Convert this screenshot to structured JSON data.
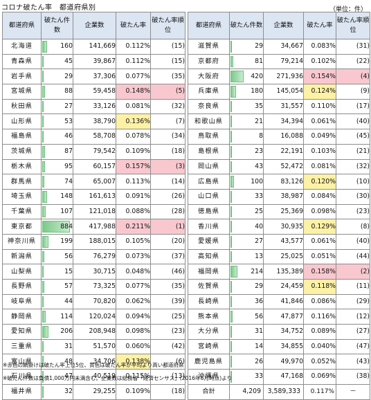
{
  "title": "コロナ破たん率　都道府県別",
  "unit": "（単位：件）",
  "headers": {
    "pref": "都道府県",
    "count": "破たん件数",
    "companies": "企業数",
    "rate": "破たん率",
    "rank": "破たん率順位"
  },
  "colors": {
    "highlight": "#fdf1a6",
    "top5": "#f9c8cf",
    "header": "#dce6f2",
    "bar": "#7cc98a"
  },
  "max_count": 884,
  "left": [
    {
      "pref": "北海道",
      "count": "160",
      "companies": "141,669",
      "rate": "0.112%",
      "rank": "(15)",
      "hl": ""
    },
    {
      "pref": "青森県",
      "count": "45",
      "companies": "39,867",
      "rate": "0.112%",
      "rank": "(15)",
      "hl": ""
    },
    {
      "pref": "岩手県",
      "count": "29",
      "companies": "37,306",
      "rate": "0.077%",
      "rank": "(35)",
      "hl": ""
    },
    {
      "pref": "宮城県",
      "count": "88",
      "companies": "59,458",
      "rate": "0.148%",
      "rank": "(5)",
      "hl": "top"
    },
    {
      "pref": "秋田県",
      "count": "27",
      "companies": "33,126",
      "rate": "0.081%",
      "rank": "(32)",
      "hl": ""
    },
    {
      "pref": "山形県",
      "count": "53",
      "companies": "38,790",
      "rate": "0.136%",
      "rank": "(7)",
      "hl": "hi"
    },
    {
      "pref": "福島県",
      "count": "46",
      "companies": "58,708",
      "rate": "0.078%",
      "rank": "(34)",
      "hl": ""
    },
    {
      "pref": "茨城県",
      "count": "87",
      "companies": "79,542",
      "rate": "0.109%",
      "rank": "(18)",
      "hl": ""
    },
    {
      "pref": "栃木県",
      "count": "95",
      "companies": "60,157",
      "rate": "0.157%",
      "rank": "(3)",
      "hl": "top"
    },
    {
      "pref": "群馬県",
      "count": "74",
      "companies": "65,007",
      "rate": "0.113%",
      "rank": "(14)",
      "hl": ""
    },
    {
      "pref": "埼玉県",
      "count": "148",
      "companies": "161,613",
      "rate": "0.091%",
      "rank": "(26)",
      "hl": ""
    },
    {
      "pref": "千葉県",
      "count": "107",
      "companies": "121,018",
      "rate": "0.088%",
      "rank": "(28)",
      "hl": ""
    },
    {
      "pref": "東京都",
      "count": "884",
      "companies": "417,988",
      "rate": "0.211%",
      "rank": "(1)",
      "hl": "top"
    },
    {
      "pref": "神奈川県",
      "count": "199",
      "companies": "188,015",
      "rate": "0.105%",
      "rank": "(20)",
      "hl": ""
    },
    {
      "pref": "新潟県",
      "count": "56",
      "companies": "76,279",
      "rate": "0.073%",
      "rank": "(37)",
      "hl": ""
    },
    {
      "pref": "山梨県",
      "count": "15",
      "companies": "30,715",
      "rate": "0.048%",
      "rank": "(46)",
      "hl": ""
    },
    {
      "pref": "長野県",
      "count": "57",
      "companies": "73,325",
      "rate": "0.077%",
      "rank": "(35)",
      "hl": ""
    },
    {
      "pref": "岐阜県",
      "count": "44",
      "companies": "70,820",
      "rate": "0.062%",
      "rank": "(39)",
      "hl": ""
    },
    {
      "pref": "静岡県",
      "count": "114",
      "companies": "120,024",
      "rate": "0.094%",
      "rank": "(25)",
      "hl": ""
    },
    {
      "pref": "愛知県",
      "count": "206",
      "companies": "208,948",
      "rate": "0.098%",
      "rank": "(23)",
      "hl": ""
    },
    {
      "pref": "三重県",
      "count": "31",
      "companies": "51,570",
      "rate": "0.060%",
      "rank": "(42)",
      "hl": ""
    },
    {
      "pref": "富山県",
      "count": "48",
      "companies": "34,706",
      "rate": "0.138%",
      "rank": "(6)",
      "hl": "hi"
    },
    {
      "pref": "石川県",
      "count": "47",
      "companies": "40,519",
      "rate": "0.115%",
      "rank": "(13)",
      "hl": ""
    },
    {
      "pref": "福井県",
      "count": "32",
      "companies": "29,255",
      "rate": "0.109%",
      "rank": "(18)",
      "hl": ""
    }
  ],
  "right": [
    {
      "pref": "滋賀県",
      "count": "29",
      "companies": "34,667",
      "rate": "0.083%",
      "rank": "(31)",
      "hl": ""
    },
    {
      "pref": "京都府",
      "count": "81",
      "companies": "79,214",
      "rate": "0.102%",
      "rank": "(22)",
      "hl": ""
    },
    {
      "pref": "大阪府",
      "count": "420",
      "companies": "271,936",
      "rate": "0.154%",
      "rank": "(4)",
      "hl": "top"
    },
    {
      "pref": "兵庫県",
      "count": "180",
      "companies": "145,054",
      "rate": "0.124%",
      "rank": "(9)",
      "hl": "hi"
    },
    {
      "pref": "奈良県",
      "count": "35",
      "companies": "31,557",
      "rate": "0.110%",
      "rank": "(17)",
      "hl": ""
    },
    {
      "pref": "和歌山県",
      "count": "21",
      "companies": "34,394",
      "rate": "0.061%",
      "rank": "(40)",
      "hl": ""
    },
    {
      "pref": "鳥取県",
      "count": "8",
      "companies": "16,088",
      "rate": "0.049%",
      "rank": "(45)",
      "hl": ""
    },
    {
      "pref": "島根県",
      "count": "23",
      "companies": "22,191",
      "rate": "0.103%",
      "rank": "(21)",
      "hl": ""
    },
    {
      "pref": "岡山県",
      "count": "43",
      "companies": "52,472",
      "rate": "0.081%",
      "rank": "(32)",
      "hl": ""
    },
    {
      "pref": "広島県",
      "count": "100",
      "companies": "83,126",
      "rate": "0.120%",
      "rank": "(10)",
      "hl": "hi"
    },
    {
      "pref": "山口県",
      "count": "33",
      "companies": "38,987",
      "rate": "0.084%",
      "rank": "(30)",
      "hl": ""
    },
    {
      "pref": "徳島県",
      "count": "25",
      "companies": "25,369",
      "rate": "0.098%",
      "rank": "(23)",
      "hl": ""
    },
    {
      "pref": "香川県",
      "count": "40",
      "companies": "30,935",
      "rate": "0.129%",
      "rank": "(8)",
      "hl": "hi"
    },
    {
      "pref": "愛媛県",
      "count": "27",
      "companies": "43,577",
      "rate": "0.061%",
      "rank": "(40)",
      "hl": ""
    },
    {
      "pref": "高知県",
      "count": "13",
      "companies": "25,025",
      "rate": "0.051%",
      "rank": "(44)",
      "hl": ""
    },
    {
      "pref": "福岡県",
      "count": "214",
      "companies": "135,389",
      "rate": "0.158%",
      "rank": "(2)",
      "hl": "top"
    },
    {
      "pref": "佐賀県",
      "count": "29",
      "companies": "24,459",
      "rate": "0.118%",
      "rank": "(11)",
      "hl": "hi"
    },
    {
      "pref": "長崎県",
      "count": "36",
      "companies": "41,846",
      "rate": "0.086%",
      "rank": "(29)",
      "hl": ""
    },
    {
      "pref": "熊本県",
      "count": "56",
      "companies": "47,877",
      "rate": "0.116%",
      "rank": "(12)",
      "hl": ""
    },
    {
      "pref": "大分県",
      "count": "31",
      "companies": "34,752",
      "rate": "0.089%",
      "rank": "(27)",
      "hl": ""
    },
    {
      "pref": "宮崎県",
      "count": "14",
      "companies": "34,855",
      "rate": "0.040%",
      "rank": "(47)",
      "hl": ""
    },
    {
      "pref": "鹿児島県",
      "count": "26",
      "companies": "49,970",
      "rate": "0.052%",
      "rank": "(43)",
      "hl": ""
    },
    {
      "pref": "沖縄県",
      "count": "33",
      "companies": "47,168",
      "rate": "0.069%",
      "rank": "(38)",
      "hl": ""
    }
  ],
  "total": {
    "label": "合計",
    "count": "4,209",
    "companies": "3,589,333",
    "rate": "0.117%",
    "rank": "－"
  },
  "notes": [
    "※赤色の網掛けは破たん率上位5位、黄色は破たん率が平均より高い都道府県",
    "※破たん件数は負債1,000万円未満含む。企業数は総務省「経済センサス」(2016年6月時点)より"
  ]
}
